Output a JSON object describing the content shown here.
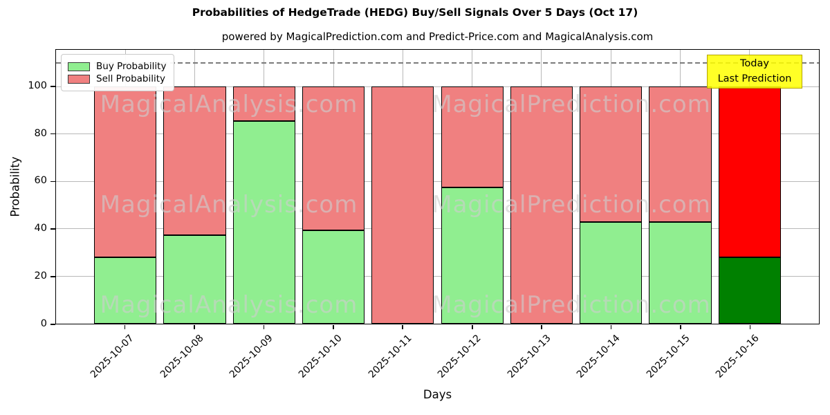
{
  "figure": {
    "title": "Probabilities of HedgeTrade (HEDG) Buy/Sell Signals Over 5 Days (Oct 17)",
    "subtitle": "powered by MagicalPrediction.com and Predict-Price.com and MagicalAnalysis.com"
  },
  "legend": {
    "items": [
      {
        "label": "Buy Probability",
        "color": "#90ee90"
      },
      {
        "label": "Sell Probability",
        "color": "#f08080"
      }
    ]
  },
  "annotation": {
    "line1": "Today",
    "line2": "Last Prediction",
    "fill": "#ffff00",
    "border": "#b3a300"
  },
  "watermarks": {
    "left_text": "MagicalAnalysis.com",
    "right_text": "MagicalPrediction.com"
  },
  "chart_data": {
    "type": "bar",
    "stacked": true,
    "title": "Probabilities of HedgeTrade (HEDG) Buy/Sell Signals Over 5 Days (Oct 17)",
    "subtitle": "powered by MagicalPrediction.com and Predict-Price.com and MagicalAnalysis.com",
    "xlabel": "Days",
    "ylabel": "Probability",
    "ylim": [
      0,
      115.6
    ],
    "yticks": [
      0,
      20,
      40,
      60,
      80,
      100
    ],
    "grid": true,
    "legend_position": "upper left",
    "dashed_line_y": 110,
    "categories": [
      "2025-10-07",
      "2025-10-08",
      "2025-10-09",
      "2025-10-10",
      "2025-10-11",
      "2025-10-12",
      "2025-10-13",
      "2025-10-14",
      "2025-10-15",
      "2025-10-16"
    ],
    "series": [
      {
        "name": "Buy Probability",
        "values": [
          28,
          37.5,
          85.5,
          39.5,
          0,
          57.5,
          0,
          43,
          43,
          28
        ]
      },
      {
        "name": "Sell Probability",
        "values": [
          72,
          62.5,
          14.5,
          60.5,
          100,
          42.5,
          100,
          57,
          57,
          72
        ]
      }
    ],
    "colors": {
      "buy_default": "#90ee90",
      "sell_default": "#f08080",
      "buy_last": "#008000",
      "sell_last": "#ff0000",
      "bar_edge": "#000000",
      "grid": "#b8b8b8",
      "dashed_line": "#7a7a7a"
    }
  }
}
